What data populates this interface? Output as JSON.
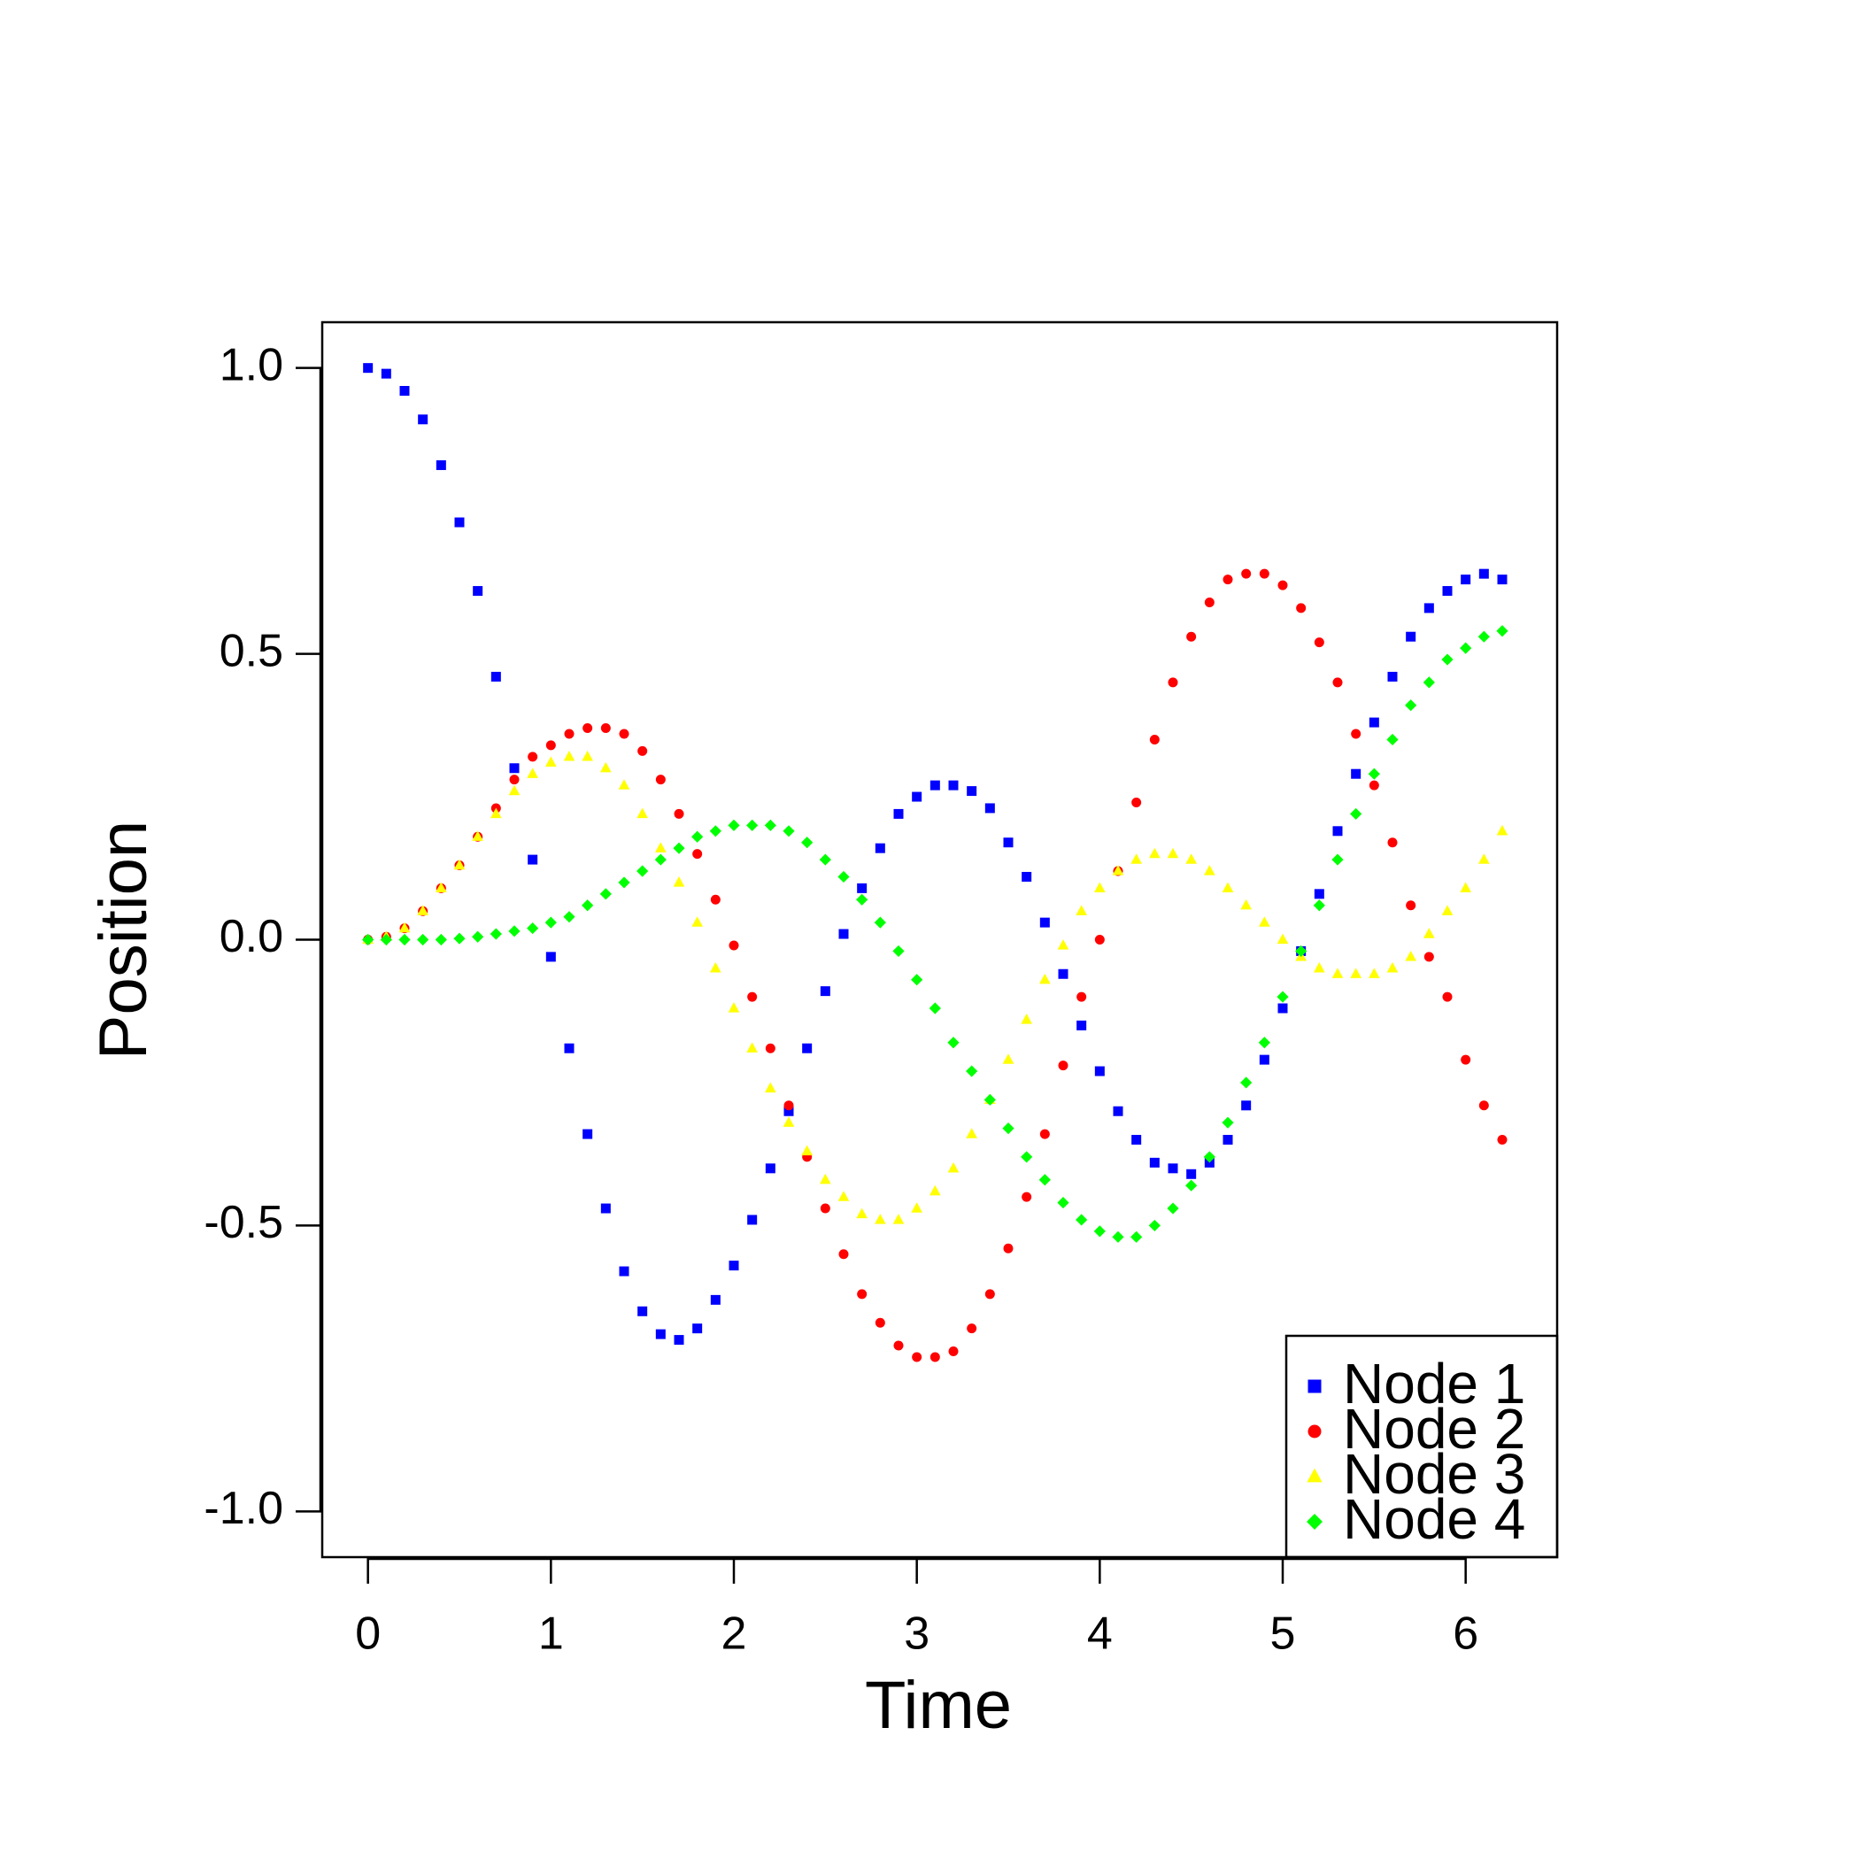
{
  "chart_data": {
    "type": "scatter",
    "x_label": "Time",
    "y_label": "Position",
    "x": [
      0,
      0.1,
      0.2,
      0.3,
      0.4,
      0.5,
      0.6,
      0.7,
      0.8,
      0.9,
      1.0,
      1.1,
      1.2,
      1.3,
      1.4,
      1.5,
      1.6,
      1.7,
      1.8,
      1.9,
      2.0,
      2.1,
      2.2,
      2.3,
      2.4,
      2.5,
      2.6,
      2.7,
      2.8,
      2.9,
      3.0,
      3.1,
      3.2,
      3.3,
      3.4,
      3.5,
      3.6,
      3.7,
      3.8,
      3.9,
      4.0,
      4.1,
      4.2,
      4.3,
      4.4,
      4.5,
      4.6,
      4.7,
      4.8,
      4.9,
      5.0,
      5.1,
      5.2,
      5.3,
      5.4,
      5.5,
      5.6,
      5.7,
      5.8,
      5.9,
      6.0,
      6.1,
      6.2
    ],
    "series": [
      {
        "name": "Node 1",
        "color": "#0000ff",
        "marker": "square",
        "values": [
          1.0,
          0.99,
          0.96,
          0.91,
          0.83,
          0.73,
          0.61,
          0.46,
          0.3,
          0.14,
          -0.03,
          -0.19,
          -0.34,
          -0.47,
          -0.58,
          -0.65,
          -0.69,
          -0.7,
          -0.68,
          -0.63,
          -0.57,
          -0.49,
          -0.4,
          -0.3,
          -0.19,
          -0.09,
          0.01,
          0.09,
          0.16,
          0.22,
          0.25,
          0.27,
          0.27,
          0.26,
          0.23,
          0.17,
          0.11,
          0.03,
          -0.06,
          -0.15,
          -0.23,
          -0.3,
          -0.35,
          -0.39,
          -0.4,
          -0.41,
          -0.39,
          -0.35,
          -0.29,
          -0.21,
          -0.12,
          -0.02,
          0.08,
          0.19,
          0.29,
          0.38,
          0.46,
          0.53,
          0.58,
          0.61,
          0.63,
          0.64,
          0.63
        ]
      },
      {
        "name": "Node 2",
        "color": "#ff0000",
        "marker": "circle",
        "values": [
          0,
          0.005,
          0.02,
          0.05,
          0.09,
          0.13,
          0.18,
          0.23,
          0.28,
          0.32,
          0.34,
          0.36,
          0.37,
          0.37,
          0.36,
          0.33,
          0.28,
          0.22,
          0.15,
          0.07,
          -0.01,
          -0.1,
          -0.19,
          -0.29,
          -0.38,
          -0.47,
          -0.55,
          -0.62,
          -0.67,
          -0.71,
          -0.73,
          -0.73,
          -0.72,
          -0.68,
          -0.62,
          -0.54,
          -0.45,
          -0.34,
          -0.22,
          -0.1,
          0.0,
          0.12,
          0.24,
          0.35,
          0.45,
          0.53,
          0.59,
          0.63,
          0.64,
          0.64,
          0.62,
          0.58,
          0.52,
          0.45,
          0.36,
          0.27,
          0.17,
          0.06,
          -0.03,
          -0.1,
          -0.21,
          -0.29,
          -0.35
        ]
      },
      {
        "name": "Node 3",
        "color": "#ffff00",
        "marker": "triangle",
        "values": [
          0,
          0.005,
          0.02,
          0.05,
          0.09,
          0.13,
          0.18,
          0.22,
          0.26,
          0.29,
          0.31,
          0.32,
          0.32,
          0.3,
          0.27,
          0.22,
          0.16,
          0.1,
          0.03,
          -0.05,
          -0.12,
          -0.19,
          -0.26,
          -0.32,
          -0.37,
          -0.42,
          -0.45,
          -0.48,
          -0.49,
          -0.49,
          -0.47,
          -0.44,
          -0.4,
          -0.34,
          -0.28,
          -0.21,
          -0.14,
          -0.07,
          -0.01,
          0.05,
          0.09,
          0.12,
          0.14,
          0.15,
          0.15,
          0.14,
          0.12,
          0.09,
          0.06,
          0.03,
          0,
          -0.03,
          -0.05,
          -0.06,
          -0.06,
          -0.06,
          -0.05,
          -0.03,
          0.01,
          0.05,
          0.09,
          0.14,
          0.19
        ]
      },
      {
        "name": "Node 4",
        "color": "#00ff00",
        "marker": "diamond",
        "values": [
          0,
          0,
          0,
          0,
          0,
          0.002,
          0.005,
          0.01,
          0.015,
          0.02,
          0.03,
          0.04,
          0.06,
          0.08,
          0.1,
          0.12,
          0.14,
          0.16,
          0.18,
          0.19,
          0.2,
          0.2,
          0.2,
          0.19,
          0.17,
          0.14,
          0.11,
          0.07,
          0.03,
          -0.02,
          -0.07,
          -0.12,
          -0.18,
          -0.23,
          -0.28,
          -0.33,
          -0.38,
          -0.42,
          -0.46,
          -0.49,
          -0.51,
          -0.52,
          -0.52,
          -0.5,
          -0.47,
          -0.43,
          -0.38,
          -0.32,
          -0.25,
          -0.18,
          -0.1,
          -0.02,
          0.06,
          0.14,
          0.22,
          0.29,
          0.35,
          0.41,
          0.45,
          0.49,
          0.51,
          0.53,
          0.54
        ]
      }
    ],
    "xlim": [
      -0.25,
      6.5
    ],
    "ylim": [
      -1.08,
      1.08
    ],
    "xticks": [
      0,
      1,
      2,
      3,
      4,
      5,
      6
    ],
    "yticks": [
      {
        "value": -1,
        "label": "-1.0"
      },
      -0.5,
      {
        "value": 0,
        "label": "0.0"
      },
      0.5,
      {
        "value": 1,
        "label": "1.0"
      }
    ],
    "legend": "bottom-right"
  }
}
